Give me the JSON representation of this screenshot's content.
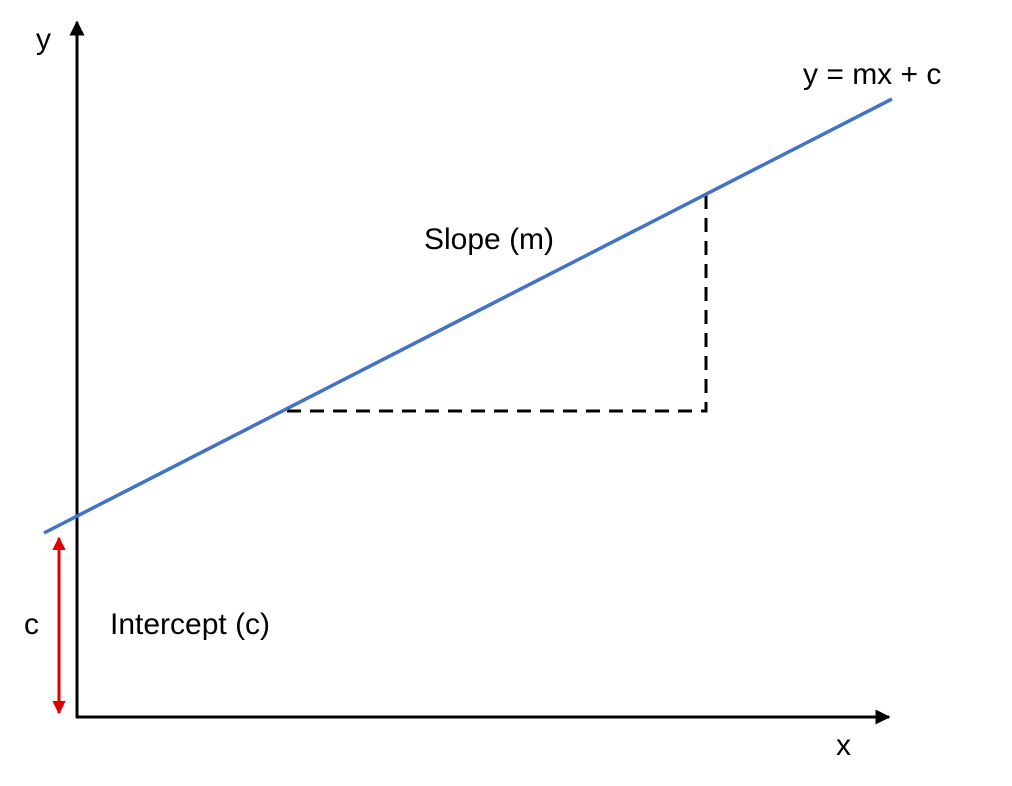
{
  "axes": {
    "x_label": "x",
    "y_label": "y"
  },
  "line": {
    "equation": "y = mx + c",
    "slope_label": "Slope (m)"
  },
  "intercept": {
    "label": "Intercept (c)",
    "marker_label": "c"
  },
  "colors": {
    "axis": "#000000",
    "line": "#4472c4",
    "intercept_arrow": "#e00000",
    "guide": "#000000"
  }
}
